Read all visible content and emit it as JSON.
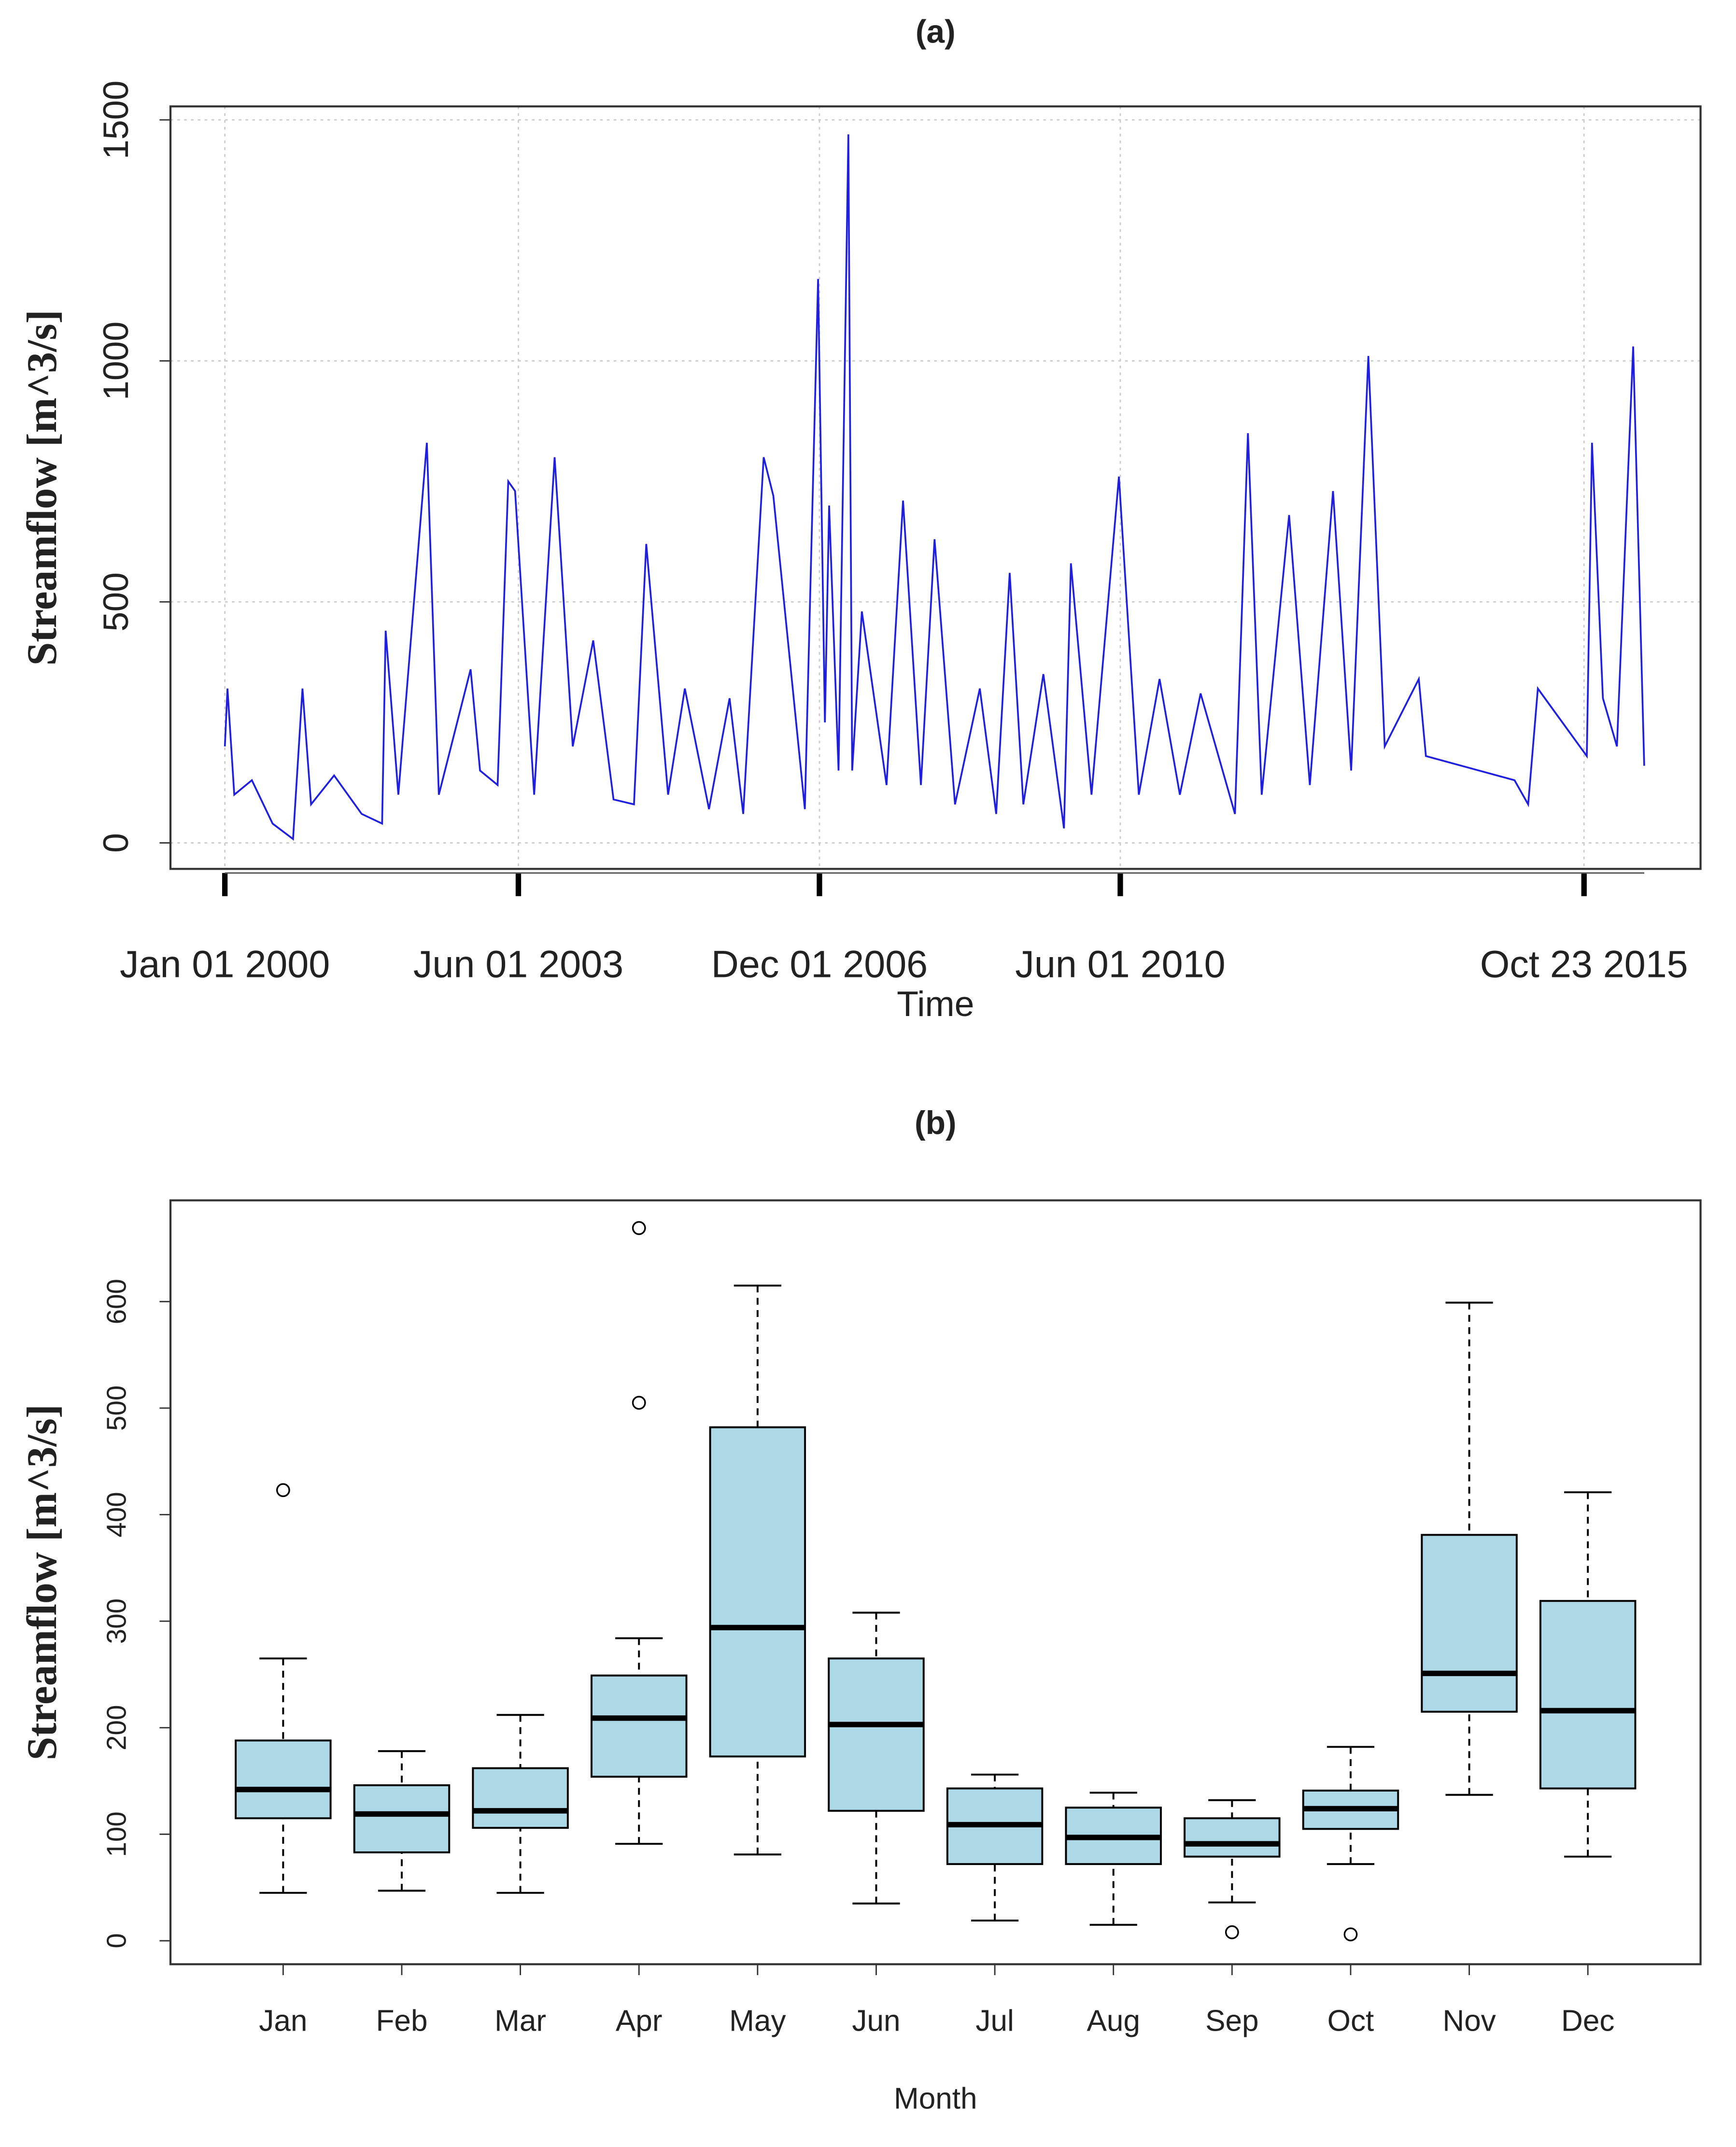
{
  "chart_data": [
    {
      "type": "line",
      "title": "(a)",
      "xlabel": "Time",
      "ylabel": "Streamflow [m^3/s]",
      "color": "#1f1fe0",
      "grid": true,
      "x": [
        "2000-01-01",
        "2000-01-12",
        "2000-02-10",
        "2000-04-25",
        "2000-07-22",
        "2000-10-17",
        "2000-11-26",
        "2001-01-01",
        "2001-04-09",
        "2001-08-04",
        "2001-10-30",
        "2001-11-14",
        "2002-01-07",
        "2002-05-08",
        "2002-06-28",
        "2002-11-10",
        "2002-12-20",
        "2003-03-05",
        "2003-04-19",
        "2003-05-18",
        "2003-08-07",
        "2003-11-02",
        "2004-01-18",
        "2004-04-14",
        "2004-07-09",
        "2004-10-04",
        "2004-11-25",
        "2005-02-26",
        "2005-05-08",
        "2005-08-19",
        "2005-11-14",
        "2006-01-11",
        "2006-04-08",
        "2006-05-19",
        "2006-09-30",
        "2006-11-25",
        "2006-12-24",
        "2007-01-11",
        "2007-02-20",
        "2007-04-03",
        "2007-04-19",
        "2007-05-30",
        "2007-09-12",
        "2007-11-21",
        "2008-02-05",
        "2008-04-03",
        "2008-06-29",
        "2008-10-12",
        "2008-12-21",
        "2009-02-16",
        "2009-04-15",
        "2009-07-09",
        "2009-10-05",
        "2009-11-03",
        "2010-01-30",
        "2010-05-26",
        "2010-08-19",
        "2010-11-15",
        "2011-02-09",
        "2011-05-08",
        "2011-10-01",
        "2011-11-25",
        "2012-01-23",
        "2012-05-18",
        "2012-08-14",
        "2012-11-21",
        "2013-02-06",
        "2013-04-20",
        "2013-06-28",
        "2013-11-20",
        "2013-12-20",
        "2015-01-01",
        "2015-02-28",
        "2015-04-10",
        "2015-11-04",
        "2015-11-26",
        "2016-01-11",
        "2016-03-11",
        "2016-05-19",
        "2016-07-05"
      ],
      "values": [
        200,
        320,
        100,
        130,
        40,
        8,
        320,
        80,
        140,
        60,
        40,
        440,
        100,
        830,
        100,
        360,
        150,
        120,
        750,
        730,
        100,
        800,
        200,
        420,
        90,
        80,
        620,
        100,
        320,
        70,
        300,
        60,
        800,
        720,
        70,
        1170,
        250,
        700,
        150,
        1470,
        150,
        480,
        120,
        710,
        120,
        630,
        80,
        320,
        60,
        560,
        80,
        350,
        30,
        580,
        100,
        760,
        100,
        340,
        100,
        310,
        60,
        850,
        100,
        680,
        120,
        730,
        150,
        1010,
        200,
        340,
        180,
        130,
        80,
        320,
        180,
        830,
        300,
        200,
        1030,
        160
      ],
      "xlim": [
        "1999-05-15",
        "2017-03-01"
      ],
      "xticks": [
        {
          "value": "2000-01-01",
          "label": "Jan 01 2000"
        },
        {
          "value": "2003-06-01",
          "label": "Jun 01 2003"
        },
        {
          "value": "2006-12-01",
          "label": "Dec 01 2006"
        },
        {
          "value": "2010-06-01",
          "label": "Jun 01 2010"
        },
        {
          "value": "2015-10-23",
          "label": "Oct 23 2015"
        }
      ],
      "ylim": [
        -54,
        1528
      ],
      "yticks": [
        0,
        500,
        1000,
        1500
      ]
    },
    {
      "type": "box",
      "title": "(b)",
      "xlabel": "Month",
      "ylabel": "Streamflow [m^3/s]",
      "color": "#add8e6",
      "categories": [
        "Jan",
        "Feb",
        "Mar",
        "Apr",
        "May",
        "Jun",
        "Jul",
        "Aug",
        "Sep",
        "Oct",
        "Nov",
        "Dec"
      ],
      "whislo": [
        45,
        47,
        45,
        91,
        81,
        35,
        19,
        15,
        36,
        72,
        137,
        79
      ],
      "q1": [
        115,
        83,
        106,
        154,
        173,
        122,
        72,
        72,
        79,
        105,
        215,
        143
      ],
      "median": [
        142,
        119,
        122,
        209,
        294,
        203,
        109,
        97,
        91,
        124,
        251,
        216
      ],
      "q3": [
        188,
        146,
        162,
        249,
        482,
        265,
        143,
        125,
        115,
        141,
        381,
        319
      ],
      "whishi": [
        265,
        178,
        212,
        284,
        615,
        308,
        156,
        139,
        132,
        182,
        599,
        421
      ],
      "outliers": [
        [
          423
        ],
        [],
        [],
        [
          669,
          505
        ],
        [],
        [],
        [],
        [],
        [
          8
        ],
        [
          6
        ],
        [],
        []
      ],
      "ylim": [
        -22,
        695
      ],
      "yticks": [
        0,
        100,
        200,
        300,
        400,
        500,
        600
      ]
    }
  ]
}
